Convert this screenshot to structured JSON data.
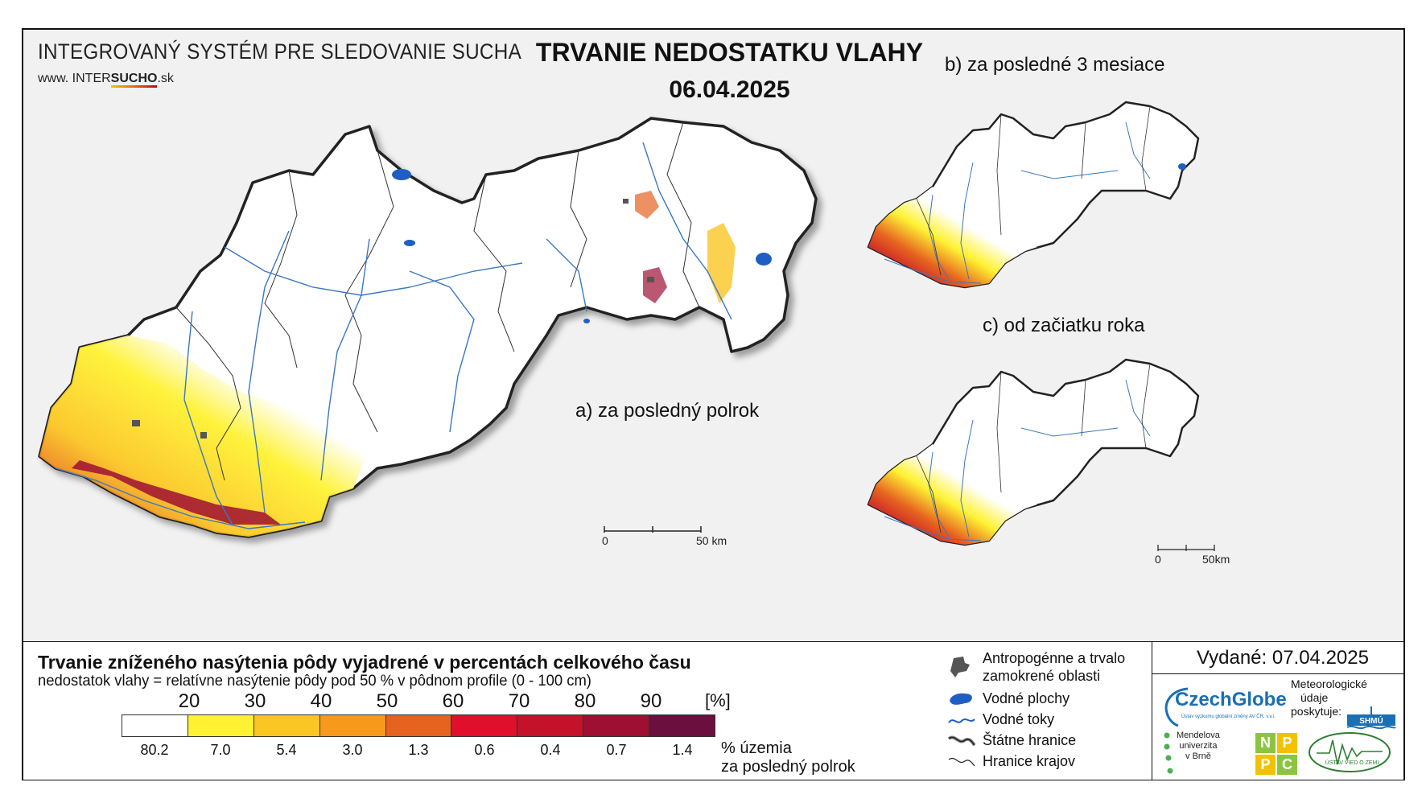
{
  "header": {
    "system_title": "INTEGROVANÝ SYSTÉM PRE SLEDOVANIE SUCHA",
    "url_prefix": "www. ",
    "url_inter": "INTER",
    "url_sucho": "SUCHO",
    "url_suffix": ".sk",
    "main_title": "TRVANIE NEDOSTATKU VLAHY",
    "date": "06.04.2025"
  },
  "panels": {
    "a_label": "a) za posledný polrok",
    "b_label": "b) za posledné 3 mesiace",
    "c_label": "c) od začiatku roka"
  },
  "scale_bars": {
    "main_zero": "0",
    "main_end": "50 km",
    "small_zero": "0",
    "small_end": "50km"
  },
  "legend": {
    "title": "Trvanie zníženého nasýtenia pôdy vyjadrené v percentách celkového času",
    "subtitle": "nedostatok vlahy = relatívne nasýtenie pôdy pod 50 % v pôdnom profile (0 - 100 cm)",
    "thresholds": [
      "20",
      "30",
      "40",
      "50",
      "60",
      "70",
      "80",
      "90"
    ],
    "unit": "[%]",
    "classes": [
      {
        "color": "#ffffff",
        "pct": "80.2"
      },
      {
        "color": "#fff233",
        "pct": "7.0"
      },
      {
        "color": "#fbc624",
        "pct": "5.4"
      },
      {
        "color": "#f79a1c",
        "pct": "3.0"
      },
      {
        "color": "#e6621f",
        "pct": "1.3"
      },
      {
        "color": "#e00f2c",
        "pct": "0.6"
      },
      {
        "color": "#c4122b",
        "pct": "0.4"
      },
      {
        "color": "#9e0f33",
        "pct": "0.7"
      },
      {
        "color": "#6b0f3f",
        "pct": "1.4"
      }
    ],
    "area_label_1": "% územia",
    "area_label_2": "za posledný polrok"
  },
  "symbols": {
    "anthropogenic_1": "Antropogénne a trvalo",
    "anthropogenic_2": "zamokrené oblasti",
    "water_bodies": "Vodné plochy",
    "water_courses": "Vodné toky",
    "state_border": "Štátne hranice",
    "region_border": "Hranice krajov"
  },
  "issued": {
    "text": "Vydané: 07.04.2025"
  },
  "logos": {
    "czechglobe": "CzechGlobe",
    "czechglobe_sub": "Ústav výzkumu globální změny AV ČR, v.v.i.",
    "meteo_1": "Meteorologické",
    "meteo_2": "údaje",
    "meteo_3": "poskytuje:",
    "shmu": "SHMÚ",
    "mendel_1": "Mendelova",
    "mendel_2": "univerzita",
    "mendel_3": "v Brně",
    "nppc": [
      "N",
      "P",
      "P",
      "C"
    ],
    "ustav": "ÚSTAV VIED O ZEMI"
  },
  "colors": {
    "state_border": "#222222",
    "rivers": "#3b78c0",
    "water_bodies": "#1f5fc4",
    "anthropogenic": "#555555"
  }
}
